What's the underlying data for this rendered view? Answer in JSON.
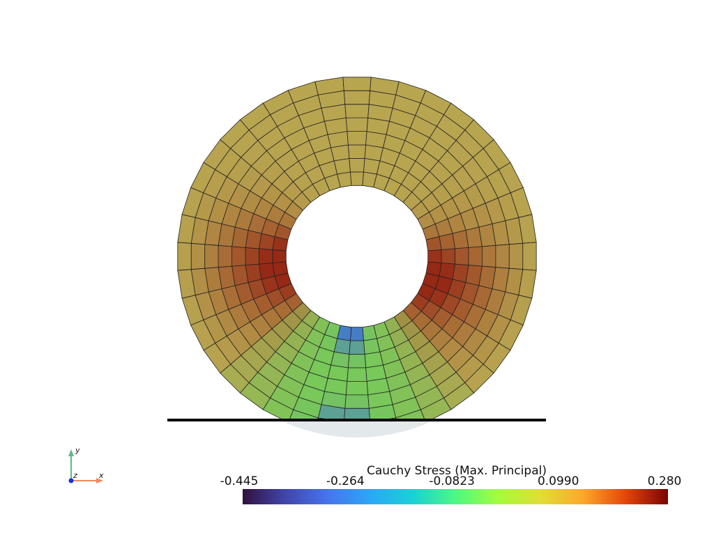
{
  "scalar_bar": {
    "title": "Cauchy Stress (Max. Principal)",
    "clim": [
      -0.445,
      0.28
    ],
    "ticks": [
      {
        "value": -0.445,
        "label": "-0.445"
      },
      {
        "value": -0.264,
        "label": "-0.264"
      },
      {
        "value": -0.0823,
        "label": "-0.0823"
      },
      {
        "value": 0.099,
        "label": "0.0990"
      },
      {
        "value": 0.28,
        "label": "0.280"
      }
    ]
  },
  "axes": {
    "x": "x",
    "y": "y",
    "z": "z"
  }
}
